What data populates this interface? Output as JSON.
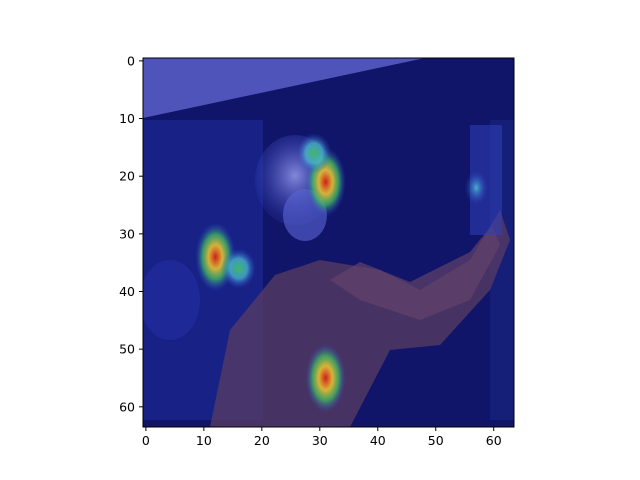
{
  "chart_data": {
    "type": "heatmap",
    "title": "",
    "xlabel": "",
    "ylabel": "",
    "xlim": [
      -0.5,
      63.5
    ],
    "ylim": [
      63.5,
      -0.5
    ],
    "y_axis_inverted": true,
    "grid": false,
    "legend": "none",
    "x_ticks": [
      0,
      10,
      20,
      30,
      40,
      50,
      60
    ],
    "y_ticks": [
      0,
      10,
      20,
      30,
      40,
      50,
      60
    ],
    "x_tick_labels": [
      "0",
      "10",
      "20",
      "30",
      "40",
      "50",
      "60"
    ],
    "y_tick_labels": [
      "0",
      "10",
      "20",
      "30",
      "40",
      "50",
      "60"
    ],
    "image_size": [
      64,
      64
    ],
    "colormap": "jet overlay on photo",
    "colors": {
      "background_dark": "#10156a",
      "background_mid": "#1c2a9a",
      "highlight_light": "#8a8ee0",
      "skin_tone": "#5a3c63",
      "hot": "#d11d16",
      "warm": "#3fbf60",
      "cool": "#4fc6d8"
    },
    "hotspots": [
      {
        "x": 31,
        "y": 21,
        "level": "high"
      },
      {
        "x": 31,
        "y": 55,
        "level": "high"
      },
      {
        "x": 12,
        "y": 34,
        "level": "high"
      },
      {
        "x": 29,
        "y": 16,
        "level": "medium"
      },
      {
        "x": 16,
        "y": 36,
        "level": "medium"
      },
      {
        "x": 57,
        "y": 22,
        "level": "low"
      }
    ]
  }
}
